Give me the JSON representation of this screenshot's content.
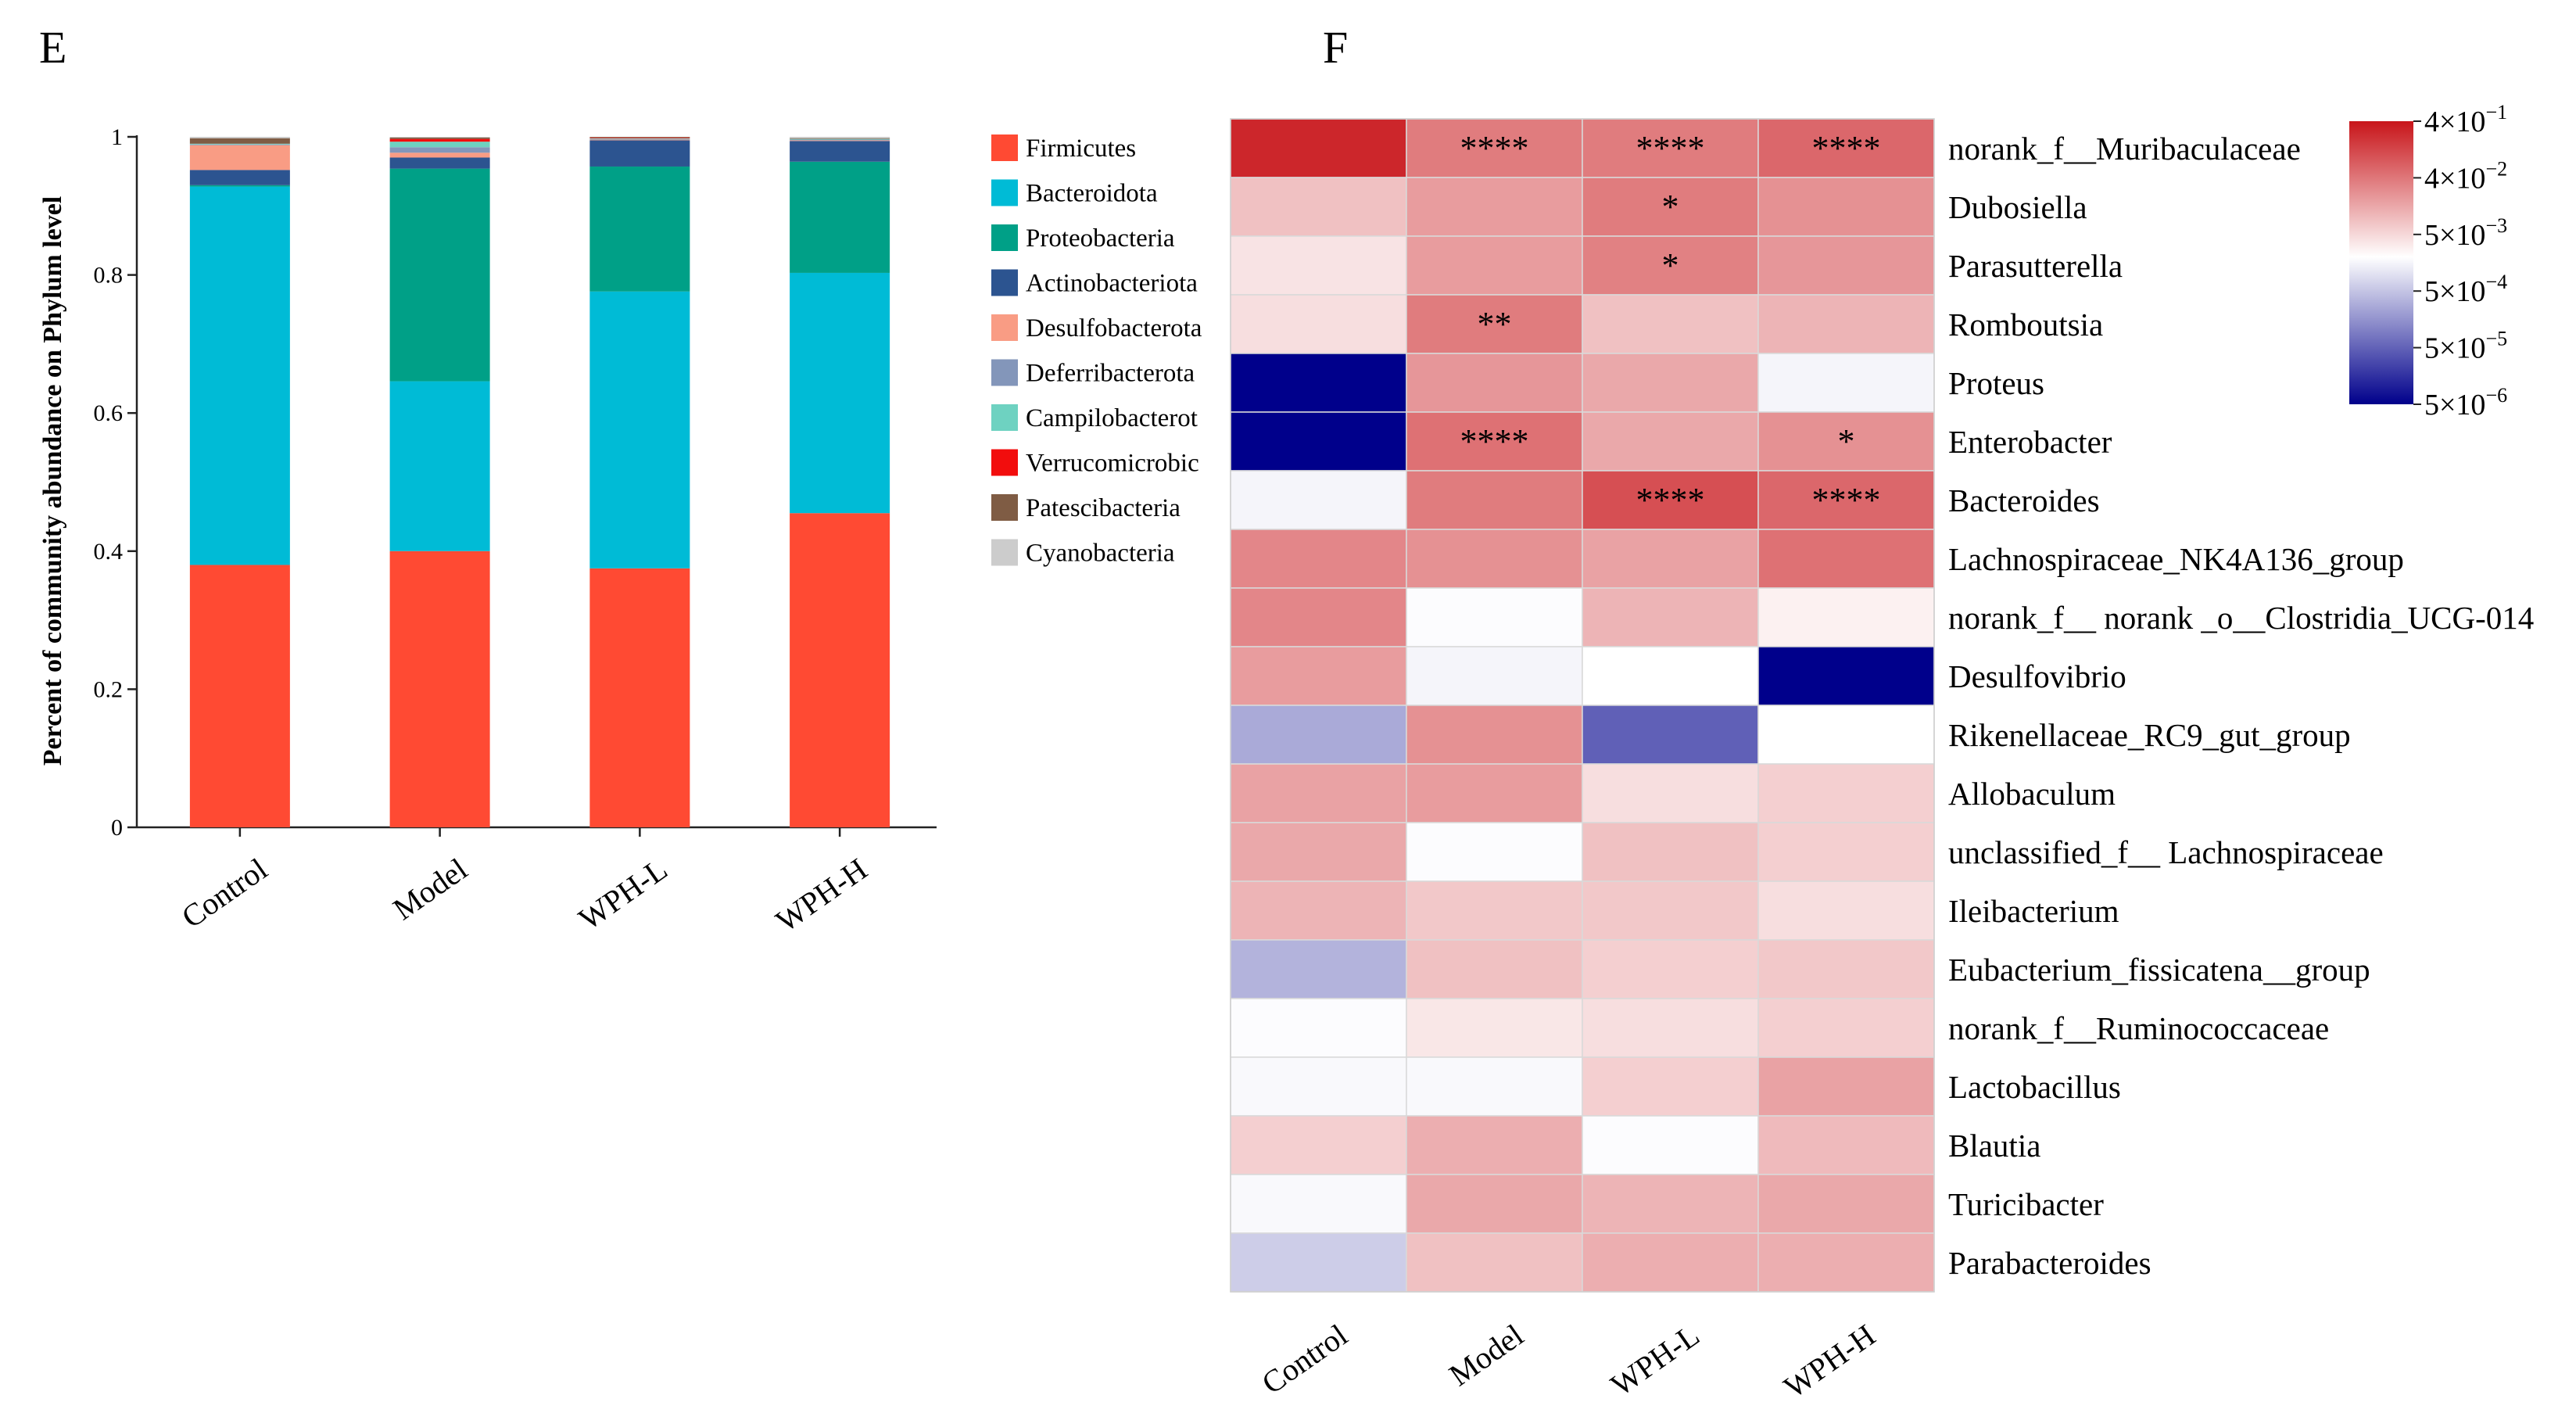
{
  "chart_data": [
    {
      "type": "bar",
      "stacked": true,
      "panel_label": "E",
      "title": "",
      "xlabel": "",
      "ylabel": "Percent of community abundance on Phylum level",
      "ylim": [
        0,
        1
      ],
      "yticks": [
        "0",
        "0.2",
        "0.4",
        "0.6",
        "0.8",
        "1"
      ],
      "categories": [
        "Control",
        "Model",
        "WPH-L",
        "WPH-H"
      ],
      "series": [
        {
          "name": "Firmicutes",
          "color": "#FF4A33",
          "values": [
            0.38,
            0.4,
            0.375,
            0.455
          ]
        },
        {
          "name": "Bacteroidota",
          "color": "#00BBD6",
          "values": [
            0.548,
            0.246,
            0.401,
            0.348
          ]
        },
        {
          "name": "Proteobacteria",
          "color": "#00A087",
          "values": [
            0.002,
            0.308,
            0.181,
            0.161
          ]
        },
        {
          "name": "Actinobacteriota",
          "color": "#2C5490",
          "values": [
            0.022,
            0.016,
            0.038,
            0.03
          ]
        },
        {
          "name": "Desulfobacterota",
          "color": "#F99C84",
          "values": [
            0.036,
            0.007,
            0.001,
            0.001
          ]
        },
        {
          "name": "Deferribacterota",
          "color": "#8396BA",
          "values": [
            0.001,
            0.008,
            0.001,
            0.001
          ]
        },
        {
          "name": "Campilobacterota",
          "color": "#6ED2C1",
          "values": [
            0.001,
            0.008,
            0.001,
            0.001
          ]
        },
        {
          "name": "Verrucomicrobiota",
          "color": "#F20D0D",
          "values": [
            0.0,
            0.004,
            0.001,
            0.0
          ]
        },
        {
          "name": "Patescibacteria",
          "color": "#7F5C44",
          "values": [
            0.008,
            0.002,
            0.001,
            0.001
          ]
        },
        {
          "name": "Cyanobacteria",
          "color": "#CCCCCC",
          "values": [
            0.002,
            0.001,
            0.0,
            0.002
          ]
        }
      ],
      "legend": {
        "position": "right",
        "labels": [
          "Firmicutes",
          "Bacteroidota",
          "Proteobacteria",
          "Actinobacteriota",
          "Desulfobacterota",
          "Deferribacterota",
          "Campilobacterot",
          "Verrucomicrobic",
          "Patescibacteria",
          "Cyanobacteria"
        ]
      }
    },
    {
      "type": "heatmap",
      "panel_label": "F",
      "columns": [
        "Control",
        "Model",
        "WPH-L",
        "WPH-H"
      ],
      "rows": [
        "norank_f__Muribaculaceae",
        "Dubosiella",
        "Parasutterella",
        "Romboutsia",
        "Proteus",
        "Enterobacter",
        "Bacteroides",
        "Lachnospiraceae_NK4A136_group",
        "norank_f__ norank _o__Clostridia_UCG-014",
        "Desulfovibrio",
        "Rikenellaceae_RC9_gut_group",
        "Allobaculum",
        "unclassified_f__ Lachnospiraceae",
        "Ileibacterium",
        "Eubacterium_fissicatena__group",
        "norank_f__Ruminococcaceae",
        "Lactobacillus",
        "Blautia",
        "Turicibacter",
        "Parabacteroides"
      ],
      "log10_values": [
        [
          -0.6,
          -1.5,
          -1.5,
          -1.3
        ],
        [
          -2.1,
          -1.8,
          -1.5,
          -1.7
        ],
        [
          -2.33,
          -1.8,
          -1.55,
          -1.75
        ],
        [
          -2.3,
          -1.5,
          -2.1,
          -2.0
        ],
        [
          -5.3,
          -1.75,
          -1.9,
          -2.6
        ],
        [
          -5.3,
          -1.4,
          -1.9,
          -1.7
        ],
        [
          -2.6,
          -1.5,
          -1.05,
          -1.3
        ],
        [
          -1.6,
          -1.7,
          -1.85,
          -1.4
        ],
        [
          -1.6,
          -2.5,
          -2.0,
          -2.4
        ],
        [
          -1.8,
          -2.6,
          -2.45,
          -5.3
        ],
        [
          -3.5,
          -1.7,
          -4.3,
          -2.45
        ],
        [
          -1.85,
          -1.8,
          -2.3,
          -2.2
        ],
        [
          -1.9,
          -2.5,
          -2.1,
          -2.2
        ],
        [
          -2.0,
          -2.15,
          -2.15,
          -2.3
        ],
        [
          -3.4,
          -2.1,
          -2.2,
          -2.15
        ],
        [
          -2.5,
          -2.35,
          -2.3,
          -2.2
        ],
        [
          -2.55,
          -2.55,
          -2.2,
          -1.85
        ],
        [
          -2.2,
          -1.95,
          -2.5,
          -2.05
        ],
        [
          -2.55,
          -1.9,
          -2.0,
          -1.9
        ],
        [
          -3.1,
          -2.1,
          -1.95,
          -1.95
        ]
      ],
      "significance": [
        [
          "",
          "****",
          "****",
          "****"
        ],
        [
          "",
          "",
          "*",
          ""
        ],
        [
          "",
          "",
          "*",
          ""
        ],
        [
          "",
          "**",
          "",
          ""
        ],
        [
          "",
          "",
          "",
          ""
        ],
        [
          "",
          "****",
          "",
          "*"
        ],
        [
          "",
          "",
          "****",
          "****"
        ],
        [
          "",
          "",
          "",
          ""
        ],
        [
          "",
          "",
          "",
          ""
        ],
        [
          "",
          "",
          "",
          ""
        ],
        [
          "",
          "",
          "",
          ""
        ],
        [
          "",
          "",
          "",
          ""
        ],
        [
          "",
          "",
          "",
          ""
        ],
        [
          "",
          "",
          "",
          ""
        ],
        [
          "",
          "",
          "",
          ""
        ],
        [
          "",
          "",
          "",
          ""
        ],
        [
          "",
          "",
          "",
          ""
        ],
        [
          "",
          "",
          "",
          ""
        ],
        [
          "",
          "",
          "",
          ""
        ],
        [
          "",
          "",
          "",
          ""
        ]
      ],
      "colorbar": {
        "labels": [
          {
            "mantissa": "4×10",
            "exponent": "−1"
          },
          {
            "mantissa": "4×10",
            "exponent": "−2"
          },
          {
            "mantissa": "5×10",
            "exponent": "−3"
          },
          {
            "mantissa": "5×10",
            "exponent": "−4"
          },
          {
            "mantissa": "5×10",
            "exponent": "−5"
          },
          {
            "mantissa": "5×10",
            "exponent": "−6"
          }
        ],
        "log10_range": [
          -5.3,
          -0.4
        ],
        "low_color": "#00008B",
        "mid_color": "#FFFFFF",
        "high_color": "#C8151A"
      }
    }
  ]
}
